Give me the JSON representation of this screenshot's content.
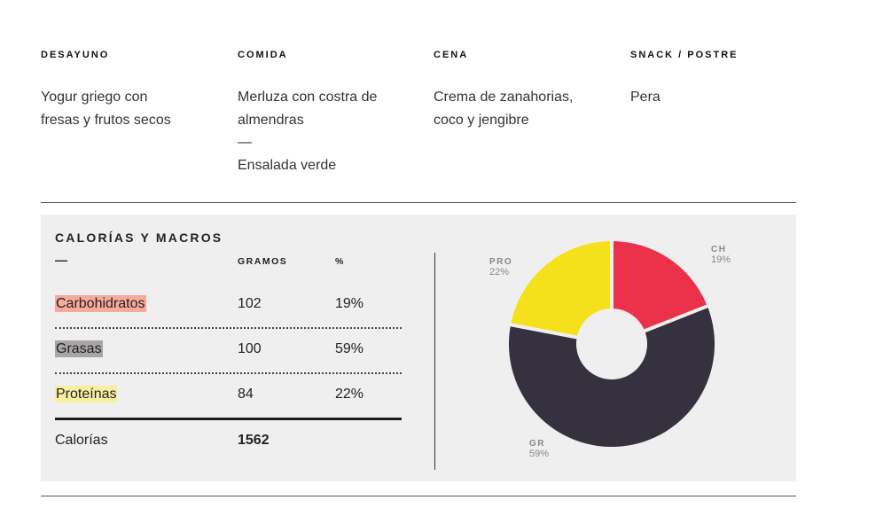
{
  "meals": [
    {
      "heading": "DESAYUNO",
      "lines": [
        "Yogur griego con",
        "fresas y frutos secos"
      ]
    },
    {
      "heading": "COMIDA",
      "lines": [
        "Merluza con costra de",
        "almendras",
        "—",
        "Ensalada verde"
      ]
    },
    {
      "heading": "CENA",
      "lines": [
        "Crema de zanahorias,",
        "coco y jengibre"
      ]
    },
    {
      "heading": "SNACK / POSTRE",
      "lines": [
        "Pera"
      ]
    }
  ],
  "macros": {
    "title": "CALORÍAS Y MACROS",
    "dash": "—",
    "col_grams": "GRAMOS",
    "col_pct": "%",
    "rows": [
      {
        "name": "Carbohidratos",
        "grams": "102",
        "pct": "19%",
        "highlight": "#f7aa9c"
      },
      {
        "name": "Grasas",
        "grams": "100",
        "pct": "59%",
        "highlight": "#a9a4a6"
      },
      {
        "name": "Proteínas",
        "grams": "84",
        "pct": "22%",
        "highlight": "#f8ee9f"
      }
    ],
    "calories_label": "Calorías",
    "calories_value": "1562"
  },
  "chart_data": {
    "type": "pie",
    "donut": true,
    "slices": [
      {
        "label": "CH",
        "value": 19,
        "pct_label": "19%",
        "color": "#ec314a"
      },
      {
        "label": "GR",
        "value": 59,
        "pct_label": "59%",
        "color": "#35313f"
      },
      {
        "label": "PRO",
        "value": 22,
        "pct_label": "22%",
        "color": "#f4e01b"
      }
    ]
  }
}
